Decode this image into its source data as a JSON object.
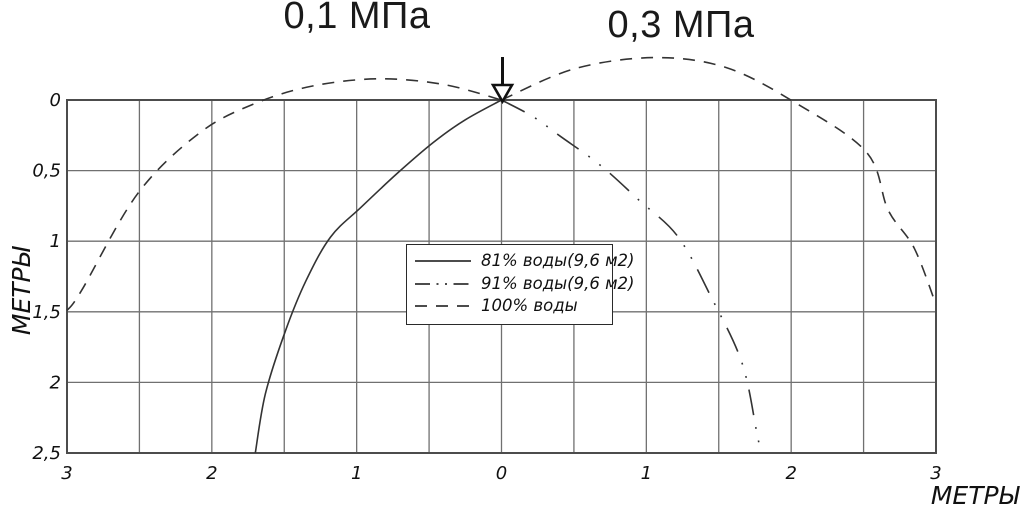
{
  "titles": {
    "left": "0,1 МПа",
    "right": "0,3 МПа"
  },
  "axes": {
    "y_label": "МЕТРЫ",
    "x_label": "МЕТРЫ",
    "x_ticks": {
      "values": [
        -3,
        -2,
        -1,
        0,
        1,
        2,
        3
      ],
      "labels": [
        "3",
        "2",
        "1",
        "0",
        "1",
        "2",
        "3"
      ]
    },
    "y_ticks": {
      "values": [
        0,
        0.5,
        1,
        1.5,
        2,
        2.5
      ],
      "labels": [
        "0",
        "0,5",
        "1",
        "1,5",
        "2",
        "2,5"
      ]
    },
    "x_range": [
      -3,
      3
    ],
    "y_range": [
      0,
      2.5
    ],
    "grid_step": 0.5
  },
  "legend": {
    "items": [
      {
        "label": "81% воды(9,6 м2)",
        "style": "solid",
        "sample_dash": ""
      },
      {
        "label": "91% воды(9,6 м2)",
        "style": "dash-dot-dot",
        "sample_dash": "15 6.5 2 6.5 2 6.5"
      },
      {
        "label": "100% воды",
        "style": "dashed",
        "sample_dash": "12 9"
      }
    ]
  },
  "colors": {
    "curve": "#333333",
    "grid": "#707070",
    "border": "#4c4c4c",
    "text": "#111111"
  },
  "chart_data": {
    "type": "line",
    "title": "",
    "annotations": [
      "0,1 МПа",
      "0,3 МПа"
    ],
    "xlabel": "МЕТРЫ",
    "ylabel": "МЕТРЫ",
    "x_range": [
      -3,
      3
    ],
    "y_range": [
      0,
      2.5
    ],
    "y_direction": "depth-downward",
    "grid": "on",
    "legend_position": "center",
    "arrow_marker": {
      "x": 0,
      "y": 0
    },
    "series": [
      {
        "name": "81% воды(9,6 м2)",
        "line_style": "solid",
        "dash": "",
        "branches": [
          [
            [
              0,
              0
            ],
            [
              -0.25,
              0.14
            ],
            [
              -0.47,
              0.3
            ],
            [
              -0.72,
              0.52
            ],
            [
              -0.97,
              0.76
            ],
            [
              -1.18,
              0.97
            ],
            [
              -1.35,
              1.28
            ],
            [
              -1.49,
              1.63
            ],
            [
              -1.63,
              2.08
            ],
            [
              -1.7,
              2.5
            ]
          ]
        ]
      },
      {
        "name": "91% воды(9,6 м2)",
        "line_style": "dash-dot-dot",
        "dash": "26 12 1.8 12 1.8 12",
        "branches": [
          [
            [
              0,
              0
            ],
            [
              0.22,
              0.12
            ],
            [
              0.41,
              0.26
            ],
            [
              0.68,
              0.46
            ],
            [
              0.95,
              0.71
            ],
            [
              1.22,
              0.97
            ],
            [
              1.45,
              1.4
            ],
            [
              1.66,
              1.86
            ],
            [
              1.76,
              2.34
            ],
            [
              1.79,
              2.5
            ]
          ]
        ]
      },
      {
        "name": "100% воды",
        "line_style": "dashed",
        "dash": "12 9",
        "branches": [
          [
            [
              -3.0,
              1.49
            ],
            [
              -2.9,
              1.35
            ],
            [
              -2.51,
              0.66
            ],
            [
              -2.08,
              0.23
            ],
            [
              -1.69,
              0.02
            ],
            [
              -1.3,
              -0.1
            ],
            [
              -0.85,
              -0.15
            ],
            [
              -0.4,
              -0.11
            ],
            [
              0,
              0
            ]
          ],
          [
            [
              0,
              0
            ],
            [
              0.5,
              -0.22
            ],
            [
              1.05,
              -0.3
            ],
            [
              1.55,
              -0.23
            ],
            [
              2.03,
              0.02
            ],
            [
              2.52,
              0.37
            ],
            [
              2.67,
              0.78
            ],
            [
              2.85,
              1.05
            ],
            [
              3.0,
              1.45
            ]
          ]
        ]
      }
    ]
  }
}
